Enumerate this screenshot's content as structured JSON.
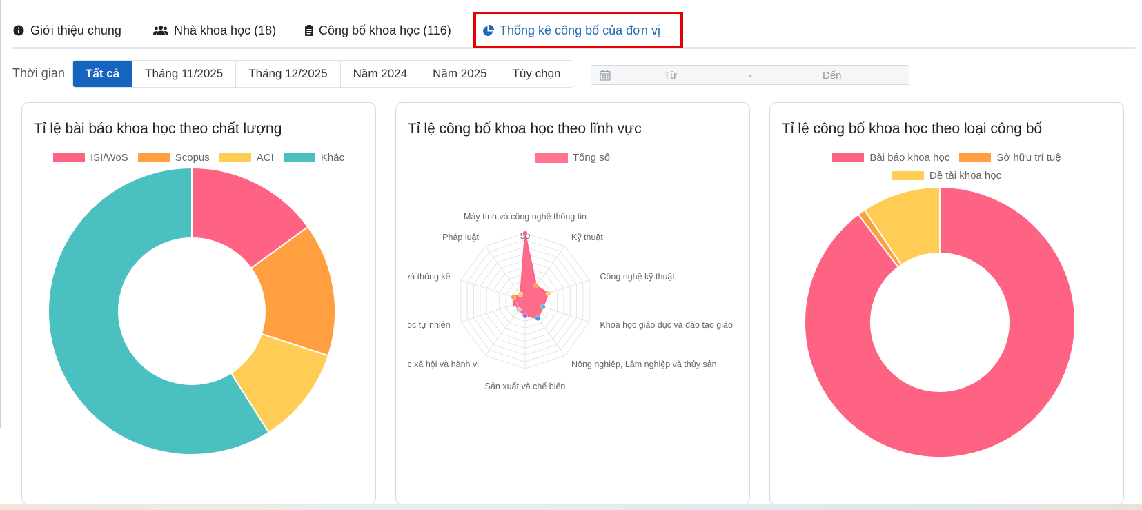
{
  "tabs": [
    {
      "label": "Giới thiệu chung",
      "icon": "info-circle-icon"
    },
    {
      "label": "Nhà khoa học (18)",
      "icon": "users-icon"
    },
    {
      "label": "Công bố khoa học (116)",
      "icon": "clipboard-icon"
    },
    {
      "label": "Thống kê công bố của đơn vị",
      "icon": "pie-chart-icon",
      "active": true
    }
  ],
  "filter": {
    "label": "Thời gian",
    "buttons": [
      "Tất cả",
      "Tháng 11/2025",
      "Tháng 12/2025",
      "Năm 2024",
      "Năm 2025",
      "Tùy chọn"
    ],
    "active_button": "Tất cả",
    "date_from_placeholder": "Từ",
    "date_separator": "-",
    "date_to_placeholder": "Đến",
    "calendar_icon": "calendar-icon"
  },
  "colors": {
    "active_tab": "#1f6bb5",
    "highlight_border": "#e60000",
    "active_button": "#1565c0",
    "pink": "#ff6384",
    "orange": "#ff9f40",
    "yellow": "#ffcd56",
    "teal": "#4bc0c0"
  },
  "chart_data": [
    {
      "type": "doughnut",
      "title": "Tỉ lệ bài báo khoa học theo chất lượng",
      "categories": [
        "ISI/WoS",
        "Scopus",
        "ACI",
        "Khác"
      ],
      "values": [
        15,
        15,
        11,
        59
      ],
      "colors": [
        "#ff6384",
        "#ff9f40",
        "#ffcd56",
        "#4bc0c0"
      ],
      "legend": "top"
    },
    {
      "type": "radar",
      "title": "Tỉ lệ công bố khoa học theo lĩnh vực",
      "series": [
        {
          "name": "Tổng số",
          "color": "#ff6384"
        }
      ],
      "categories": [
        "Máy tính và công nghệ thông tin",
        "Kỹ thuật",
        "Công nghệ kỹ thuật",
        "Khoa học giáo dục và đào tạo giáo",
        "Nông nghiệp, Lâm nghiệp và thủy sản",
        "Sản xuất và chế biến",
        "oc xã hội và hành vi",
        "oc tự nhiên",
        "và thống kê",
        "Pháp luật"
      ],
      "values": [
        50,
        14,
        18,
        14,
        16,
        11,
        8,
        8,
        9,
        6
      ],
      "point_colors": [
        "#ff6384",
        "#ff9f40",
        "#ffcd56",
        "#4bc0c0",
        "#36a2eb",
        "#9966ff",
        "#c9cbcf",
        "#ff6384",
        "#ff9f40",
        "#ffcd56"
      ],
      "rlim": [
        0,
        50
      ],
      "tick_label": "50",
      "legend": "top"
    },
    {
      "type": "doughnut",
      "title": "Tỉ lệ công bố khoa học theo loại công bố",
      "categories": [
        "Bài báo khoa học",
        "Sở hữu trí tuệ",
        "Đề tài khoa học"
      ],
      "values": [
        89.7,
        0.9,
        9.4
      ],
      "colors": [
        "#ff6384",
        "#ff9f40",
        "#ffcd56"
      ],
      "legend": "top"
    }
  ]
}
